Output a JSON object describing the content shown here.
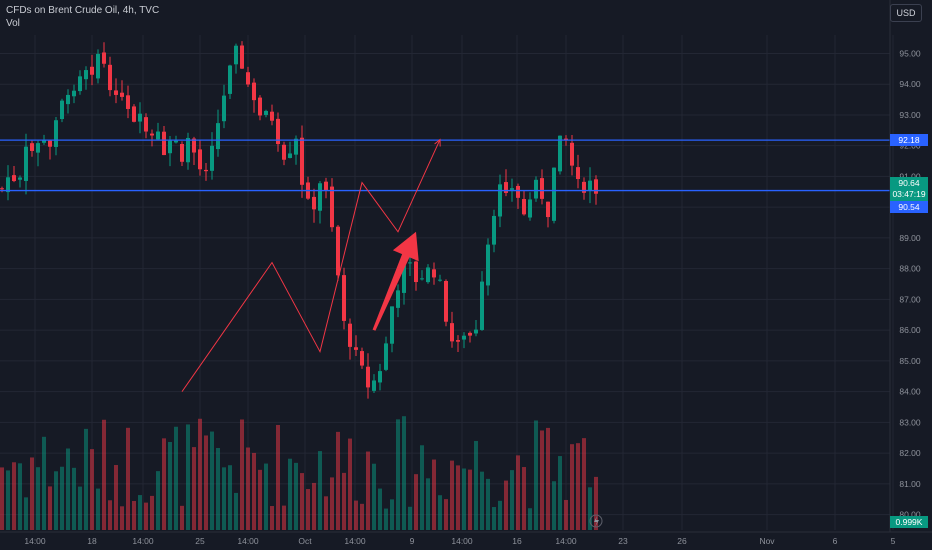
{
  "header": {
    "title": "CFDs on Brent Crude Oil, 4h, TVC",
    "volume_label": "Vol",
    "currency": "USD"
  },
  "colors": {
    "background": "#161a25",
    "grid": "#232734",
    "up": "#089981",
    "down": "#f23645",
    "level_line": "#2962ff",
    "drawing": "#f23645",
    "axis_text": "#8e929b"
  },
  "price_axis": {
    "ticks": [
      "95.00",
      "94.00",
      "93.00",
      "92.00",
      "91.00",
      "90.00",
      "89.00",
      "88.00",
      "87.00",
      "86.00",
      "85.00",
      "84.00",
      "83.00",
      "82.00",
      "81.00",
      "80.00"
    ]
  },
  "time_axis": {
    "ticks": [
      "14:00",
      "18",
      "14:00",
      "25",
      "14:00",
      "Oct",
      "14:00",
      "9",
      "14:00",
      "16",
      "14:00",
      "23",
      "26",
      "Nov",
      "6",
      "5"
    ]
  },
  "levels": [
    {
      "price": 92.18,
      "label": "92.18"
    },
    {
      "price": 90.54,
      "label": "90.54"
    }
  ],
  "last_price": {
    "price": 90.64,
    "label": "90.64",
    "countdown": "03:47:19"
  },
  "volume_indicator": {
    "label": "0.999K"
  },
  "chart_data": {
    "type": "candlestick",
    "title": "CFDs on Brent Crude Oil, 4h, TVC",
    "y_unit": "USD",
    "ylim": [
      79.5,
      95.6
    ],
    "grid": true,
    "price_path": [
      90.6,
      91.1,
      90.8,
      92.2,
      91.7,
      92.4,
      92.0,
      93.0,
      93.9,
      93.5,
      94.5,
      94.0,
      95.2,
      94.3,
      93.4,
      93.9,
      92.8,
      93.3,
      92.1,
      92.8,
      91.8,
      92.4,
      91.6,
      92.3,
      91.4,
      90.9,
      92.0,
      93.4,
      94.4,
      95.2,
      94.1,
      93.6,
      92.8,
      93.1,
      92.2,
      91.5,
      92.6,
      90.6,
      89.7,
      90.9,
      90.3,
      88.4,
      86.2,
      85.5,
      84.8,
      84.2,
      84.4,
      85.2,
      86.9,
      87.8,
      88.1,
      87.6,
      87.9,
      88.0,
      87.3,
      85.8,
      85.4,
      86.1,
      85.6,
      87.8,
      89.3,
      90.7,
      90.2,
      90.9,
      89.6,
      90.4,
      90.8,
      89.7,
      91.5,
      92.5,
      91.4,
      90.5,
      90.9,
      90.6
    ],
    "volume_range": [
      0,
      3500
    ],
    "annotations": [
      {
        "type": "line",
        "price": 92.18
      },
      {
        "type": "line",
        "price": 90.54
      },
      {
        "type": "path",
        "points": [
          [
            30,
            84.0
          ],
          [
            45,
            88.2
          ],
          [
            53,
            85.3
          ],
          [
            60,
            90.8
          ],
          [
            66,
            89.2
          ],
          [
            73,
            92.2
          ]
        ]
      },
      {
        "type": "arrow",
        "from": [
          62,
          86.0
        ],
        "to": [
          69,
          89.2
        ]
      }
    ]
  }
}
